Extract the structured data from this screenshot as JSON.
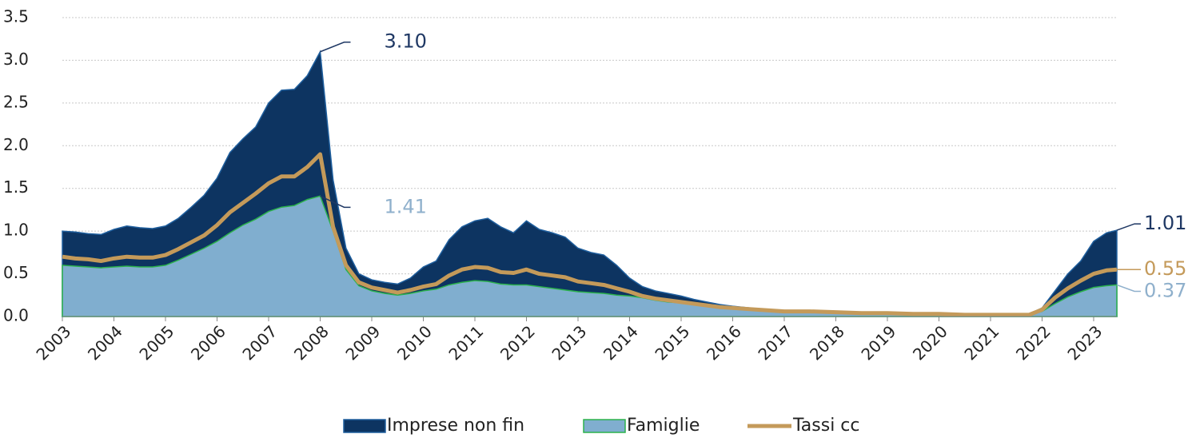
{
  "chart_data": {
    "type": "area",
    "x": [
      2003,
      2003.25,
      2003.5,
      2003.75,
      2004,
      2004.25,
      2004.5,
      2004.75,
      2005,
      2005.25,
      2005.5,
      2005.75,
      2006,
      2006.25,
      2006.5,
      2006.75,
      2007,
      2007.25,
      2007.5,
      2007.75,
      2008,
      2008.25,
      2008.5,
      2008.75,
      2009,
      2009.25,
      2009.5,
      2009.75,
      2010,
      2010.25,
      2010.5,
      2010.75,
      2011,
      2011.25,
      2011.5,
      2011.75,
      2012,
      2012.25,
      2012.5,
      2012.75,
      2013,
      2013.25,
      2013.5,
      2013.75,
      2014,
      2014.25,
      2014.5,
      2014.75,
      2015,
      2015.25,
      2015.5,
      2015.75,
      2016,
      2016.5,
      2017,
      2017.5,
      2018,
      2018.5,
      2019,
      2019.5,
      2020,
      2020.5,
      2021,
      2021.5,
      2021.75,
      2022,
      2022.25,
      2022.5,
      2022.75,
      2023,
      2023.25,
      2023.45
    ],
    "series": [
      {
        "name": "Imprese non fin",
        "color": "#0d3461",
        "outline": "#1f5f9e",
        "style": "area",
        "values": [
          1.0,
          0.99,
          0.97,
          0.96,
          1.02,
          1.06,
          1.04,
          1.03,
          1.06,
          1.15,
          1.28,
          1.42,
          1.62,
          1.92,
          2.08,
          2.22,
          2.5,
          2.65,
          2.66,
          2.82,
          3.1,
          1.6,
          0.8,
          0.5,
          0.43,
          0.4,
          0.38,
          0.45,
          0.58,
          0.65,
          0.9,
          1.05,
          1.12,
          1.15,
          1.05,
          0.98,
          1.12,
          1.02,
          0.98,
          0.93,
          0.8,
          0.75,
          0.72,
          0.6,
          0.45,
          0.35,
          0.3,
          0.27,
          0.24,
          0.2,
          0.17,
          0.14,
          0.12,
          0.09,
          0.07,
          0.06,
          0.05,
          0.05,
          0.04,
          0.04,
          0.03,
          0.03,
          0.02,
          0.02,
          0.03,
          0.1,
          0.3,
          0.5,
          0.65,
          0.88,
          0.98,
          1.01
        ]
      },
      {
        "name": "Famiglie",
        "color": "#80aecf",
        "outline": "#2bb24c",
        "style": "area",
        "values": [
          0.6,
          0.59,
          0.58,
          0.57,
          0.58,
          0.59,
          0.58,
          0.58,
          0.6,
          0.66,
          0.73,
          0.8,
          0.88,
          0.98,
          1.07,
          1.14,
          1.23,
          1.28,
          1.3,
          1.37,
          1.41,
          1.0,
          0.55,
          0.36,
          0.3,
          0.27,
          0.25,
          0.27,
          0.3,
          0.32,
          0.37,
          0.4,
          0.42,
          0.41,
          0.38,
          0.37,
          0.37,
          0.35,
          0.33,
          0.31,
          0.29,
          0.28,
          0.27,
          0.25,
          0.24,
          0.22,
          0.19,
          0.17,
          0.16,
          0.14,
          0.12,
          0.1,
          0.09,
          0.07,
          0.06,
          0.05,
          0.04,
          0.04,
          0.04,
          0.03,
          0.03,
          0.02,
          0.02,
          0.02,
          0.02,
          0.06,
          0.15,
          0.23,
          0.29,
          0.34,
          0.36,
          0.37
        ]
      },
      {
        "name": "Tassi cc",
        "color": "#c49a5a",
        "style": "line",
        "values": [
          0.7,
          0.68,
          0.67,
          0.65,
          0.68,
          0.7,
          0.69,
          0.69,
          0.72,
          0.79,
          0.87,
          0.95,
          1.07,
          1.22,
          1.33,
          1.44,
          1.56,
          1.64,
          1.64,
          1.75,
          1.9,
          1.05,
          0.6,
          0.4,
          0.34,
          0.31,
          0.28,
          0.31,
          0.35,
          0.38,
          0.48,
          0.55,
          0.58,
          0.57,
          0.52,
          0.51,
          0.55,
          0.5,
          0.48,
          0.46,
          0.41,
          0.39,
          0.37,
          0.33,
          0.29,
          0.24,
          0.21,
          0.19,
          0.17,
          0.15,
          0.13,
          0.11,
          0.1,
          0.08,
          0.06,
          0.06,
          0.05,
          0.04,
          0.04,
          0.03,
          0.03,
          0.02,
          0.02,
          0.02,
          0.02,
          0.08,
          0.22,
          0.33,
          0.42,
          0.5,
          0.54,
          0.55
        ]
      }
    ],
    "annotations": [
      {
        "x": 2008,
        "value": 3.1,
        "label": "3.10",
        "color": "#1f3864"
      },
      {
        "x": 2008,
        "value": 1.41,
        "label": "1.41",
        "color": "#8fb0cc"
      },
      {
        "x": 2023.45,
        "value": 1.01,
        "label": "1.01",
        "color": "#1f3864"
      },
      {
        "x": 2023.45,
        "value": 0.55,
        "label": "0.55",
        "color": "#c49a5a"
      },
      {
        "x": 2023.45,
        "value": 0.37,
        "label": "0.37",
        "color": "#8fb0cc"
      }
    ],
    "xlim": [
      2003,
      2023.45
    ],
    "xticks": [
      2003,
      2004,
      2005,
      2006,
      2007,
      2008,
      2009,
      2010,
      2011,
      2012,
      2013,
      2014,
      2015,
      2016,
      2017,
      2018,
      2019,
      2020,
      2021,
      2022,
      2023
    ],
    "ylim": [
      0,
      3.5
    ],
    "yticks": [
      {
        "value": 0,
        "label": "0.0"
      },
      {
        "value": 0.5,
        "label": "0.5"
      },
      {
        "value": 1,
        "label": "1.0"
      },
      {
        "value": 1.5,
        "label": "1.5"
      },
      {
        "value": 2,
        "label": "2.0"
      },
      {
        "value": 2.5,
        "label": "2.5"
      },
      {
        "value": 3,
        "label": "3.0"
      },
      {
        "value": 3.5,
        "label": "3.5"
      }
    ],
    "grid": true,
    "legend": "bottom"
  }
}
